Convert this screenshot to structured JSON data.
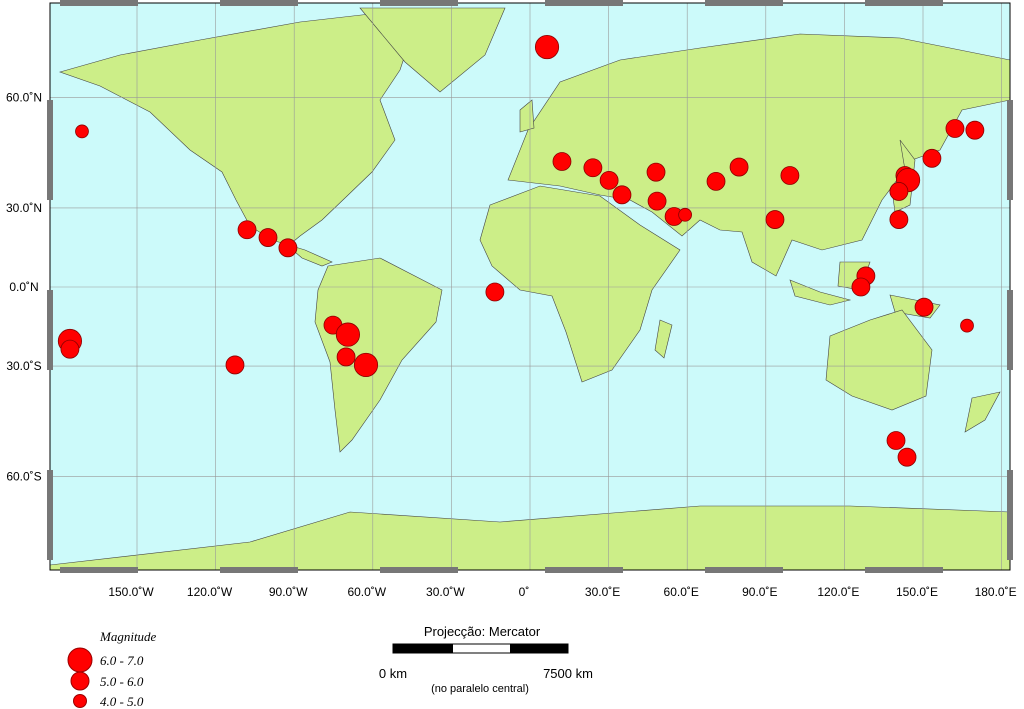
{
  "map": {
    "longitude_ticks": [
      {
        "value": -150,
        "label": "150.0˚W"
      },
      {
        "value": -120,
        "label": "120.0˚W"
      },
      {
        "value": -90,
        "label": "90.0˚W"
      },
      {
        "value": -60,
        "label": "60.0˚W"
      },
      {
        "value": -30,
        "label": "30.0˚W"
      },
      {
        "value": 0,
        "label": "0˚"
      },
      {
        "value": 30,
        "label": "30.0˚E"
      },
      {
        "value": 60,
        "label": "60.0˚E"
      },
      {
        "value": 90,
        "label": "90.0˚E"
      },
      {
        "value": 120,
        "label": "120.0˚E"
      },
      {
        "value": 150,
        "label": "150.0˚E"
      },
      {
        "value": 180,
        "label": "180.0˚E"
      }
    ],
    "latitude_ticks": [
      {
        "value": 60,
        "label": "60.0˚N"
      },
      {
        "value": 30,
        "label": "30.0˚N"
      },
      {
        "value": 0,
        "label": "0.0˚N"
      },
      {
        "value": -30,
        "label": "30.0˚S"
      },
      {
        "value": -60,
        "label": "60.0˚S"
      }
    ],
    "events": [
      {
        "lon": -171,
        "lat": 52.5,
        "magnitude": 4.5
      },
      {
        "lon": -175.6,
        "lat": -21,
        "magnitude": 6.5
      },
      {
        "lon": -175.6,
        "lat": -24,
        "magnitude": 5.5
      },
      {
        "lon": 6.5,
        "lat": 68.6,
        "magnitude": 6.5
      },
      {
        "lon": 12.2,
        "lat": 44.6,
        "magnitude": 5.5
      },
      {
        "lon": 24,
        "lat": 42.8,
        "magnitude": 5.5
      },
      {
        "lon": 30.2,
        "lat": 39,
        "magnitude": 5.5
      },
      {
        "lon": 35.1,
        "lat": 34.4,
        "magnitude": 5.5
      },
      {
        "lon": 48.1,
        "lat": 41.5,
        "magnitude": 5.5
      },
      {
        "lon": 48.5,
        "lat": 32.3,
        "magnitude": 5.5
      },
      {
        "lon": 55,
        "lat": 27,
        "magnitude": 5.5
      },
      {
        "lon": 59.2,
        "lat": 27.6,
        "magnitude": 4.5
      },
      {
        "lon": 71,
        "lat": 38.7,
        "magnitude": 5.5
      },
      {
        "lon": 79.8,
        "lat": 43,
        "magnitude": 5.5
      },
      {
        "lon": 99.2,
        "lat": 40.5,
        "magnitude": 5.5
      },
      {
        "lon": 93.5,
        "lat": 25.9,
        "magnitude": 5.5
      },
      {
        "lon": 143.1,
        "lat": 40.5,
        "magnitude": 5.5
      },
      {
        "lon": 144.3,
        "lat": 39.1,
        "magnitude": 6.5
      },
      {
        "lon": 140.8,
        "lat": 35.5,
        "magnitude": 5.5
      },
      {
        "lon": 140.8,
        "lat": 25.9,
        "magnitude": 5.5
      },
      {
        "lon": 153.4,
        "lat": 45.5,
        "magnitude": 5.5
      },
      {
        "lon": 162.2,
        "lat": 53.2,
        "magnitude": 5.5
      },
      {
        "lon": 169.8,
        "lat": 52.8,
        "magnitude": 5.5
      },
      {
        "lon": 128.2,
        "lat": 4.4,
        "magnitude": 5.5
      },
      {
        "lon": 126.3,
        "lat": 0,
        "magnitude": 5.5
      },
      {
        "lon": 150.4,
        "lat": -8,
        "magnitude": 5.5
      },
      {
        "lon": 166.8,
        "lat": -15.2,
        "magnitude": 4.5
      },
      {
        "lon": 139.7,
        "lat": -52,
        "magnitude": 5.5
      },
      {
        "lon": 143.9,
        "lat": -55.9,
        "magnitude": 5.5
      },
      {
        "lon": -13.4,
        "lat": -2,
        "magnitude": 5.5
      },
      {
        "lon": -112.6,
        "lat": -29.6,
        "magnitude": 5.5
      },
      {
        "lon": -108,
        "lat": 22.2,
        "magnitude": 5.5
      },
      {
        "lon": -100,
        "lat": 19.3,
        "magnitude": 5.5
      },
      {
        "lon": -92.4,
        "lat": 15.4,
        "magnitude": 5.5
      },
      {
        "lon": -75.2,
        "lat": -15,
        "magnitude": 5.5
      },
      {
        "lon": -69.5,
        "lat": -18.6,
        "magnitude": 6.5
      },
      {
        "lon": -70.2,
        "lat": -26.8,
        "magnitude": 5.5
      },
      {
        "lon": -62.6,
        "lat": -29.6,
        "magnitude": 6.5
      }
    ]
  },
  "legend": {
    "title": "Magnitude",
    "items": [
      "6.0 - 7.0",
      "5.0 - 6.0",
      "4.0 - 5.0"
    ]
  },
  "scale_bar": {
    "title": "Projecção: Mercator",
    "start_label": "0 km",
    "end_label": "7500 km",
    "note": "(no paralelo central)"
  }
}
